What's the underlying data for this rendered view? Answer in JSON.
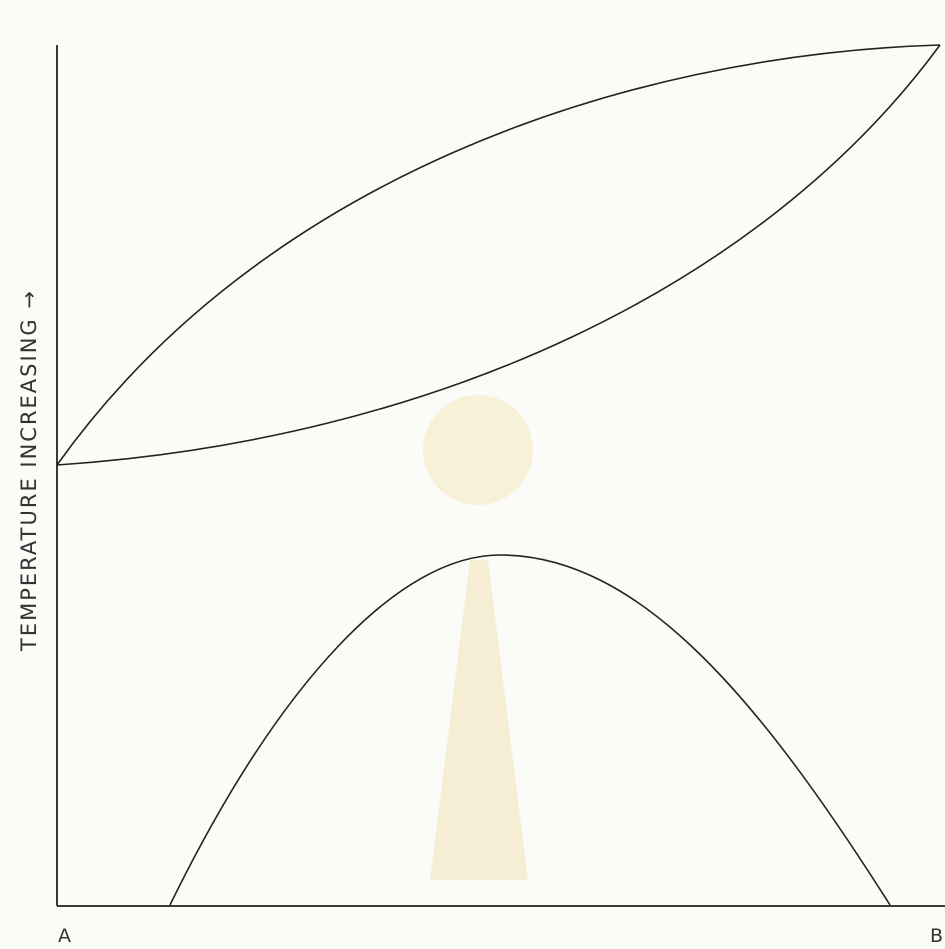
{
  "axis_label": "TEMPERATURE INCREASING →",
  "corner_labels": {
    "left": "A",
    "right": "B"
  }
}
